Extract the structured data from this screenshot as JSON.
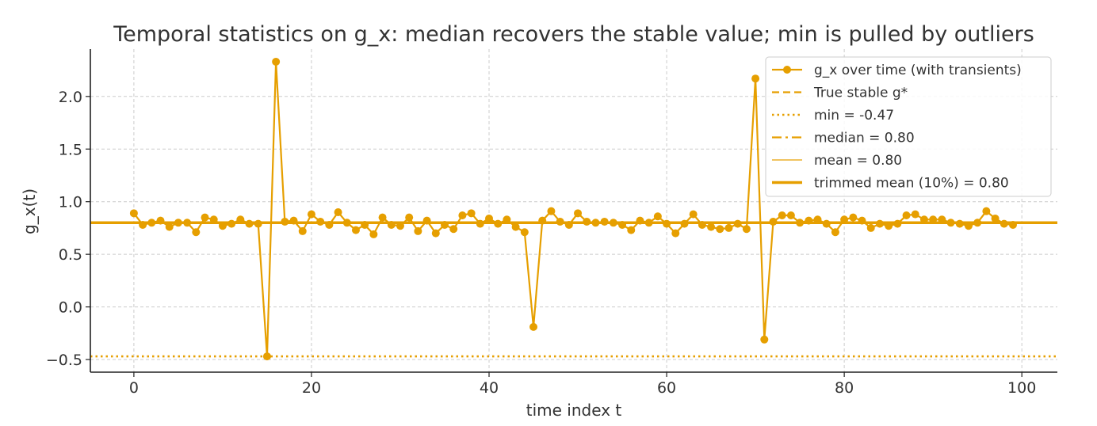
{
  "colors": {
    "series": "#e69f00",
    "axis": "#222222",
    "grid": "#cccccc",
    "text": "#333333",
    "legend_border": "#cccccc"
  },
  "chart_data": {
    "type": "line",
    "title": "Temporal statistics on g_x: median recovers the stable value; min is pulled by outliers",
    "xlabel": "time index t",
    "ylabel": "g_x(t)",
    "xlim": [
      -4.9,
      104
    ],
    "ylim": [
      -0.62,
      2.45
    ],
    "xticks": [
      0,
      20,
      40,
      60,
      80,
      100
    ],
    "xtick_labels": [
      "0",
      "20",
      "40",
      "60",
      "80",
      "100"
    ],
    "yticks": [
      -0.5,
      0.0,
      0.5,
      1.0,
      1.5,
      2.0
    ],
    "ytick_labels": [
      "−0.5",
      "0.0",
      "0.5",
      "1.0",
      "1.5",
      "2.0"
    ],
    "grid": true,
    "legend_position": "top-right",
    "series": [
      {
        "name": "g_x over time (with transients)",
        "style": "line-marker",
        "x": [
          0,
          1,
          2,
          3,
          4,
          5,
          6,
          7,
          8,
          9,
          10,
          11,
          12,
          13,
          14,
          15,
          16,
          17,
          18,
          19,
          20,
          21,
          22,
          23,
          24,
          25,
          26,
          27,
          28,
          29,
          30,
          31,
          32,
          33,
          34,
          35,
          36,
          37,
          38,
          39,
          40,
          41,
          42,
          43,
          44,
          45,
          46,
          47,
          48,
          49,
          50,
          51,
          52,
          53,
          54,
          55,
          56,
          57,
          58,
          59,
          60,
          61,
          62,
          63,
          64,
          65,
          66,
          67,
          68,
          69,
          70,
          71,
          72,
          73,
          74,
          75,
          76,
          77,
          78,
          79,
          80,
          81,
          82,
          83,
          84,
          85,
          86,
          87,
          88,
          89,
          90,
          91,
          92,
          93,
          94,
          95,
          96,
          97,
          98,
          99
        ],
        "y": [
          0.89,
          0.78,
          0.8,
          0.82,
          0.76,
          0.8,
          0.8,
          0.71,
          0.85,
          0.83,
          0.77,
          0.79,
          0.83,
          0.79,
          0.79,
          -0.47,
          2.33,
          0.81,
          0.82,
          0.72,
          0.88,
          0.81,
          0.78,
          0.9,
          0.8,
          0.73,
          0.78,
          0.69,
          0.85,
          0.78,
          0.77,
          0.85,
          0.72,
          0.82,
          0.7,
          0.78,
          0.74,
          0.87,
          0.89,
          0.79,
          0.84,
          0.79,
          0.83,
          0.76,
          0.71,
          -0.19,
          0.82,
          0.91,
          0.81,
          0.78,
          0.89,
          0.81,
          0.8,
          0.81,
          0.8,
          0.78,
          0.73,
          0.82,
          0.8,
          0.86,
          0.79,
          0.7,
          0.79,
          0.88,
          0.78,
          0.76,
          0.74,
          0.75,
          0.79,
          0.74,
          2.17,
          -0.31,
          0.81,
          0.87,
          0.87,
          0.8,
          0.82,
          0.83,
          0.79,
          0.71,
          0.83,
          0.85,
          0.82,
          0.75,
          0.79,
          0.77,
          0.79,
          0.87,
          0.88,
          0.83,
          0.83,
          0.83,
          0.8,
          0.79,
          0.77,
          0.8,
          0.91,
          0.84,
          0.79,
          0.78
        ]
      },
      {
        "name": "True stable g*",
        "style": "dashed",
        "value": 0.8
      },
      {
        "name": "min = -0.47",
        "style": "dotted",
        "value": -0.47
      },
      {
        "name": "median = 0.80",
        "style": "dashdot",
        "value": 0.8
      },
      {
        "name": "mean = 0.80",
        "style": "thin-solid",
        "value": 0.8
      },
      {
        "name": "trimmed mean (10%) = 0.80",
        "style": "thick-solid",
        "value": 0.8
      }
    ]
  }
}
